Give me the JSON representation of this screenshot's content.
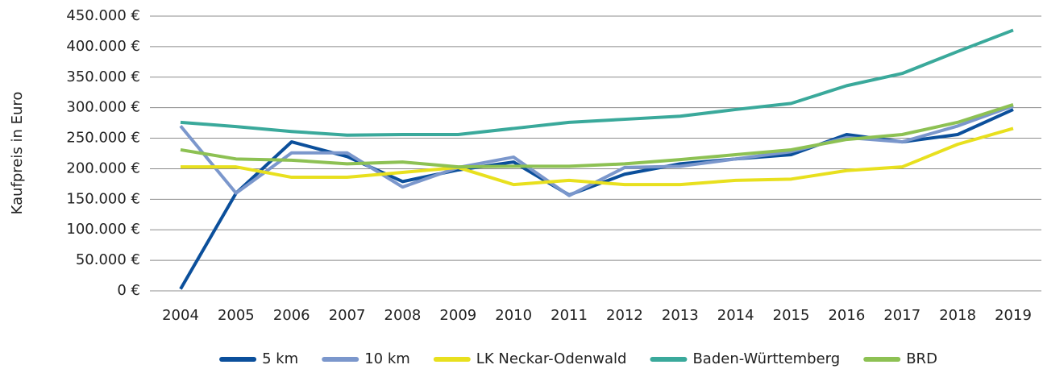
{
  "chart_data": {
    "type": "line",
    "y_label": "Kaufpreis in Euro",
    "categories": [
      "2004",
      "2005",
      "2006",
      "2007",
      "2008",
      "2009",
      "2010",
      "2011",
      "2012",
      "2013",
      "2014",
      "2015",
      "2016",
      "2017",
      "2018",
      "2019"
    ],
    "series": [
      {
        "name": "5 km",
        "color": "#0b4f9b",
        "values": [
          3000,
          160000,
          244000,
          220000,
          179000,
          198000,
          211000,
          157000,
          191000,
          208000,
          216000,
          223000,
          256000,
          244000,
          256000,
          297000
        ]
      },
      {
        "name": "10 km",
        "color": "#7b97cc",
        "values": [
          270000,
          160000,
          226000,
          226000,
          170000,
          202000,
          219000,
          156000,
          202000,
          204000,
          216000,
          228000,
          251000,
          244000,
          270000,
          303000
        ]
      },
      {
        "name": "LK Neckar-Odenwald",
        "color": "#e8e01e",
        "values": [
          203000,
          203000,
          186000,
          186000,
          194000,
          202000,
          174000,
          181000,
          174000,
          174000,
          181000,
          183000,
          197000,
          203000,
          240000,
          266000
        ]
      },
      {
        "name": "Baden-Württemberg",
        "color": "#3aa99b",
        "values": [
          276000,
          269000,
          261000,
          255000,
          256000,
          256000,
          266000,
          276000,
          281000,
          286000,
          297000,
          307000,
          336000,
          356000,
          392000,
          427000
        ]
      },
      {
        "name": "BRD",
        "color": "#8dc153",
        "values": [
          231000,
          216000,
          214000,
          208000,
          211000,
          203000,
          204000,
          204000,
          208000,
          215000,
          223000,
          231000,
          248000,
          256000,
          276000,
          305000
        ]
      }
    ],
    "ylim": [
      0,
      450000
    ],
    "yticks": [
      {
        "value": 0,
        "label": "0 €"
      },
      {
        "value": 50000,
        "label": "50.000 €"
      },
      {
        "value": 100000,
        "label": "100.000 €"
      },
      {
        "value": 150000,
        "label": "150.000 €"
      },
      {
        "value": 200000,
        "label": "200.000 €"
      },
      {
        "value": 250000,
        "label": "250.000 €"
      },
      {
        "value": 300000,
        "label": "300.000 €"
      },
      {
        "value": 350000,
        "label": "350.000 €"
      },
      {
        "value": 400000,
        "label": "400.000 €"
      },
      {
        "value": 450000,
        "label": "450.000 €"
      }
    ],
    "grid": true,
    "legend": "bottom"
  }
}
